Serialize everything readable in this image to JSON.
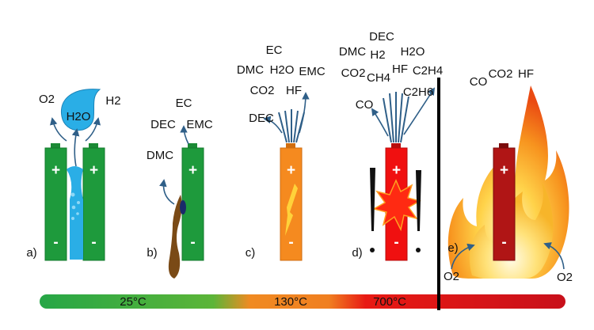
{
  "stages": [
    {
      "id": "a",
      "label": "a)",
      "gases": [
        "O2",
        "H2O",
        "H2"
      ]
    },
    {
      "id": "b",
      "label": "b)",
      "gases": [
        "EC",
        "DEC",
        "EMC",
        "DMC"
      ]
    },
    {
      "id": "c",
      "label": "c)",
      "gases": [
        "EC",
        "DMC",
        "H2O",
        "EMC",
        "CO2",
        "HF",
        "DEC"
      ]
    },
    {
      "id": "d",
      "label": "d)",
      "gases": [
        "DEC",
        "DMC",
        "H2",
        "H2O",
        "CO2",
        "CH4",
        "HF",
        "C2H4",
        "CO",
        "C2H6"
      ]
    },
    {
      "id": "e",
      "label": "e)",
      "gases": [
        "CO",
        "CO2",
        "HF",
        "O2",
        "O2"
      ]
    }
  ],
  "terminals": {
    "plus": "+",
    "minus": "-"
  },
  "temperatures": [
    "25°C",
    "130°C",
    "700°C"
  ],
  "colors": {
    "green_battery": "#1e9a3c",
    "orange_battery": "#f58a1f",
    "red_battery": "#f01010",
    "dark_red_battery": "#b01515",
    "electrolyte_blue": "#2aaee6",
    "arrow": "#2f5f88",
    "bar_green": "#28a84a",
    "bar_orange": "#f08a22",
    "bar_red": "#e41212"
  },
  "icons": [
    "water-drop-icon",
    "explosion-icon",
    "fire-icon",
    "exclamation-icon"
  ]
}
